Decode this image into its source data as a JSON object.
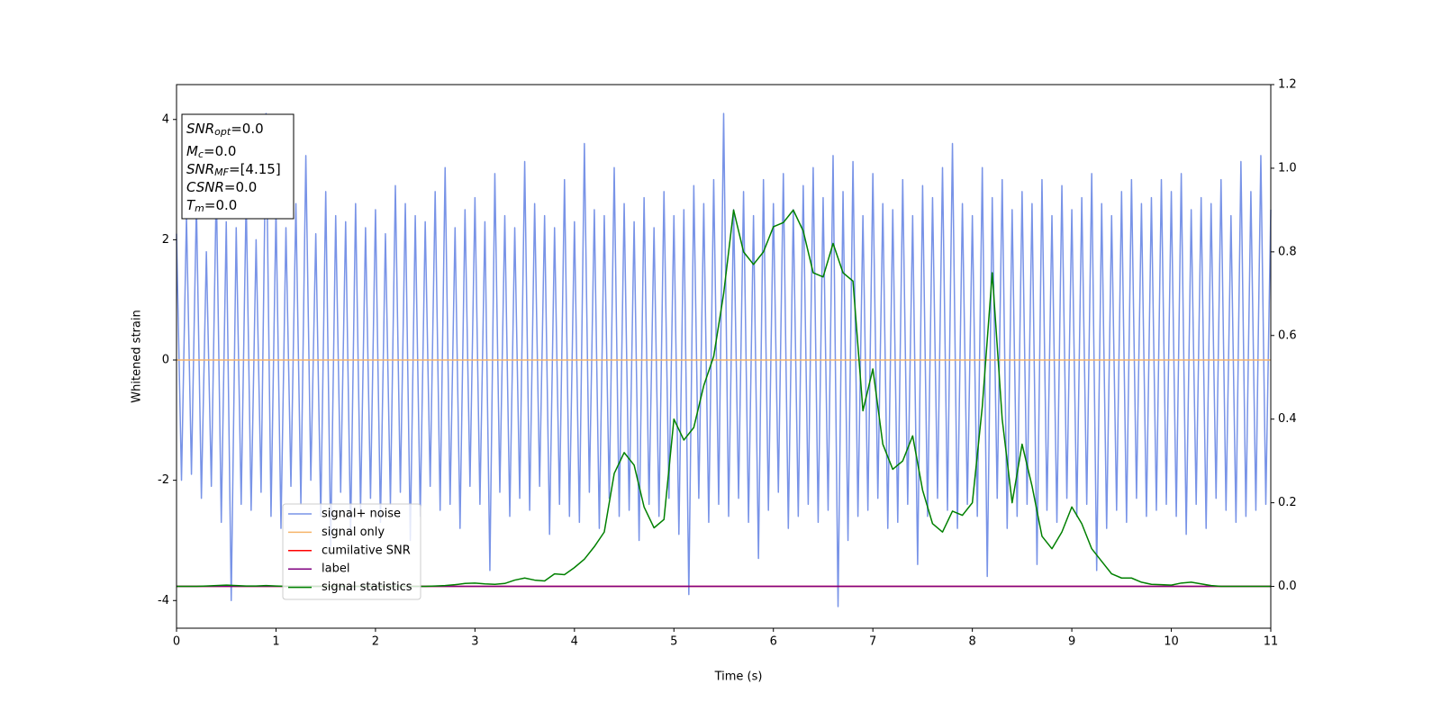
{
  "chart_data": {
    "type": "line",
    "xlabel": "Time (s)",
    "ylabel": "Whitened strain",
    "xlim": [
      0,
      11
    ],
    "xticks": [
      0,
      1,
      2,
      3,
      4,
      5,
      6,
      7,
      8,
      9,
      10,
      11
    ],
    "ylim": [
      -4.46,
      4.58
    ],
    "yticks": [
      -4,
      -2,
      0,
      2,
      4
    ],
    "y2lim": [
      -0.1,
      1.2
    ],
    "y2ticks": [
      {
        "value": 0,
        "label": "0.0"
      },
      {
        "value": 0.2,
        "label": "0.2"
      },
      {
        "value": 0.4,
        "label": "0.4"
      },
      {
        "value": 0.6,
        "label": "0.6"
      },
      {
        "value": 0.8,
        "label": "0.8"
      },
      {
        "value": 1.0,
        "label": "1.0"
      },
      {
        "value": 1.2,
        "label": "1.2"
      }
    ],
    "annotation": [
      [
        "SNR",
        "opt",
        "=0.0"
      ],
      [
        "M",
        "c",
        "=0.0"
      ],
      [
        "SNR",
        "MF",
        "=[4.15]"
      ],
      [
        "CSNR",
        "",
        "=0.0"
      ],
      [
        "T",
        "m",
        "=0.0"
      ]
    ],
    "series": [
      {
        "name": "signal+ noise",
        "color": "#7893e7",
        "x": [
          0,
          0.05,
          0.1,
          0.15,
          0.2,
          0.25,
          0.3,
          0.35,
          0.4,
          0.45,
          0.5,
          0.55,
          0.6,
          0.65,
          0.7,
          0.75,
          0.8,
          0.85,
          0.9,
          0.95,
          1,
          1.05,
          1.1,
          1.15,
          1.2,
          1.25,
          1.3,
          1.35,
          1.4,
          1.45,
          1.5,
          1.55,
          1.6,
          1.65,
          1.7,
          1.75,
          1.8,
          1.85,
          1.9,
          1.95,
          2,
          2.05,
          2.1,
          2.15,
          2.2,
          2.25,
          2.3,
          2.35,
          2.4,
          2.45,
          2.5,
          2.55,
          2.6,
          2.65,
          2.7,
          2.75,
          2.8,
          2.85,
          2.9,
          2.95,
          3,
          3.05,
          3.1,
          3.15,
          3.2,
          3.25,
          3.3,
          3.35,
          3.4,
          3.45,
          3.5,
          3.55,
          3.6,
          3.65,
          3.7,
          3.75,
          3.8,
          3.85,
          3.9,
          3.95,
          4,
          4.05,
          4.1,
          4.15,
          4.2,
          4.25,
          4.3,
          4.35,
          4.4,
          4.45,
          4.5,
          4.55,
          4.6,
          4.65,
          4.7,
          4.75,
          4.8,
          4.85,
          4.9,
          4.95,
          5,
          5.05,
          5.1,
          5.15,
          5.2,
          5.25,
          5.3,
          5.35,
          5.4,
          5.45,
          5.5,
          5.55,
          5.6,
          5.65,
          5.7,
          5.75,
          5.8,
          5.85,
          5.9,
          5.95,
          6,
          6.05,
          6.1,
          6.15,
          6.2,
          6.25,
          6.3,
          6.35,
          6.4,
          6.45,
          6.5,
          6.55,
          6.6,
          6.65,
          6.7,
          6.75,
          6.8,
          6.85,
          6.9,
          6.95,
          7,
          7.05,
          7.1,
          7.15,
          7.2,
          7.25,
          7.3,
          7.35,
          7.4,
          7.45,
          7.5,
          7.55,
          7.6,
          7.65,
          7.7,
          7.75,
          7.8,
          7.85,
          7.9,
          7.95,
          8,
          8.05,
          8.1,
          8.15,
          8.2,
          8.25,
          8.3,
          8.35,
          8.4,
          8.45,
          8.5,
          8.55,
          8.6,
          8.65,
          8.7,
          8.75,
          8.8,
          8.85,
          8.9,
          8.95,
          9,
          9.05,
          9.1,
          9.15,
          9.2,
          9.25,
          9.3,
          9.35,
          9.4,
          9.45,
          9.5,
          9.55,
          9.6,
          9.65,
          9.7,
          9.75,
          9.8,
          9.85,
          9.9,
          9.95,
          10,
          10.05,
          10.1,
          10.15,
          10.2,
          10.25,
          10.3,
          10.35,
          10.4,
          10.45,
          10.5,
          10.55,
          10.6,
          10.65,
          10.7,
          10.75,
          10.8,
          10.85,
          10.9,
          10.95,
          11
        ],
        "values": [
          2.1,
          -2.0,
          2.4,
          -1.9,
          2.6,
          -2.3,
          1.8,
          -2.1,
          2.9,
          -2.7,
          2.3,
          -4.0,
          2.2,
          -2.4,
          2.7,
          -2.5,
          2.0,
          -2.2,
          4.1,
          -2.6,
          2.5,
          -2.8,
          2.2,
          -2.1,
          2.6,
          -2.4,
          3.4,
          -2.0,
          2.1,
          -2.6,
          2.8,
          -3.1,
          2.4,
          -2.2,
          2.3,
          -2.9,
          2.6,
          -2.5,
          2.2,
          -2.3,
          2.5,
          -2.7,
          2.1,
          -2.4,
          2.9,
          -2.2,
          2.6,
          -3.0,
          2.4,
          -2.6,
          2.3,
          -2.1,
          2.8,
          -2.5,
          3.2,
          -2.4,
          2.2,
          -2.8,
          2.5,
          -2.1,
          2.7,
          -2.4,
          2.3,
          -3.5,
          3.1,
          -2.2,
          2.4,
          -2.6,
          2.2,
          -2.3,
          3.3,
          -2.5,
          2.6,
          -2.1,
          2.4,
          -2.9,
          2.2,
          -2.4,
          3.0,
          -2.6,
          2.3,
          -2.7,
          3.6,
          -2.2,
          2.5,
          -2.8,
          2.4,
          -2.3,
          3.2,
          -2.6,
          2.6,
          -2.5,
          2.3,
          -3.0,
          2.7,
          -2.4,
          2.2,
          -2.6,
          2.8,
          -2.3,
          2.4,
          -2.9,
          2.5,
          -3.9,
          2.9,
          -2.3,
          2.6,
          -2.7,
          3.0,
          -2.4,
          4.1,
          -2.6,
          2.5,
          -2.3,
          2.8,
          -2.7,
          2.4,
          -3.3,
          3.0,
          -2.5,
          2.6,
          -2.2,
          3.1,
          -2.8,
          2.5,
          -2.6,
          2.9,
          -2.4,
          3.2,
          -2.7,
          2.7,
          -2.5,
          3.4,
          -4.1,
          2.8,
          -3.0,
          3.3,
          -2.6,
          2.4,
          -2.5,
          3.1,
          -2.3,
          2.6,
          -2.8,
          2.5,
          -2.7,
          3.0,
          -2.4,
          2.4,
          -3.4,
          2.9,
          -2.6,
          2.7,
          -2.3,
          3.2,
          -2.5,
          3.6,
          -2.8,
          2.6,
          -2.4,
          2.4,
          -2.6,
          3.2,
          -3.6,
          2.7,
          -2.3,
          3.0,
          -2.8,
          2.5,
          -2.6,
          2.8,
          -2.4,
          2.6,
          -3.4,
          3.0,
          -2.5,
          2.4,
          -2.7,
          2.9,
          -2.3,
          2.5,
          -2.6,
          2.7,
          -2.4,
          3.1,
          -3.5,
          2.6,
          -2.8,
          2.4,
          -2.5,
          2.8,
          -2.7,
          3.0,
          -2.3,
          2.6,
          -2.6,
          2.7,
          -2.5,
          3.0,
          -2.4,
          2.8,
          -2.6,
          3.1,
          -2.9,
          2.5,
          -2.4,
          2.7,
          -2.8,
          2.6,
          -2.3,
          3.0,
          -2.5,
          2.4,
          -2.7,
          3.3,
          -2.6,
          2.8,
          -2.5,
          3.4,
          -2.4,
          2.5
        ]
      },
      {
        "name": "signal only",
        "color": "#f6b46a",
        "x": [
          0,
          11
        ],
        "values": [
          0,
          0
        ]
      },
      {
        "name": "cumilative SNR",
        "color": "#ff0000",
        "axis": "y2",
        "x": [
          0,
          11
        ],
        "values": [
          0,
          0
        ]
      },
      {
        "name": "label",
        "color": "#800080",
        "axis": "y2",
        "x": [
          0,
          11
        ],
        "values": [
          0,
          0
        ]
      },
      {
        "name": "signal statistics",
        "color": "#008000",
        "axis": "y2",
        "x": [
          0,
          0.1,
          0.2,
          0.3,
          0.4,
          0.5,
          0.6,
          0.7,
          0.8,
          0.9,
          1,
          1.1,
          1.2,
          1.3,
          1.4,
          1.5,
          1.6,
          1.7,
          1.8,
          1.9,
          2,
          2.1,
          2.2,
          2.3,
          2.4,
          2.5,
          2.6,
          2.7,
          2.8,
          2.9,
          3,
          3.1,
          3.2,
          3.3,
          3.4,
          3.5,
          3.6,
          3.7,
          3.8,
          3.9,
          4,
          4.1,
          4.2,
          4.3,
          4.4,
          4.5,
          4.6,
          4.7,
          4.8,
          4.9,
          5,
          5.1,
          5.2,
          5.3,
          5.4,
          5.5,
          5.6,
          5.7,
          5.8,
          5.9,
          6,
          6.1,
          6.2,
          6.3,
          6.4,
          6.5,
          6.6,
          6.7,
          6.8,
          6.9,
          7,
          7.1,
          7.2,
          7.3,
          7.4,
          7.5,
          7.6,
          7.7,
          7.8,
          7.9,
          8,
          8.1,
          8.2,
          8.3,
          8.4,
          8.5,
          8.6,
          8.7,
          8.8,
          8.9,
          9,
          9.1,
          9.2,
          9.3,
          9.4,
          9.5,
          9.6,
          9.7,
          9.8,
          9.9,
          10,
          10.1,
          10.2,
          10.3,
          10.4,
          10.5,
          10.6,
          10.7,
          10.8,
          10.9,
          11
        ],
        "values": [
          0,
          0,
          0,
          0.001,
          0.002,
          0.003,
          0.002,
          0.001,
          0.001,
          0.002,
          0.001,
          0,
          0,
          0,
          0,
          0,
          0,
          0,
          0,
          0,
          0,
          0,
          0,
          0,
          0,
          0,
          0.001,
          0.002,
          0.004,
          0.007,
          0.008,
          0.006,
          0.005,
          0.007,
          0.015,
          0.02,
          0.015,
          0.013,
          0.03,
          0.028,
          0.045,
          0.065,
          0.095,
          0.13,
          0.27,
          0.32,
          0.29,
          0.19,
          0.14,
          0.16,
          0.4,
          0.35,
          0.38,
          0.48,
          0.55,
          0.7,
          0.9,
          0.8,
          0.77,
          0.8,
          0.86,
          0.87,
          0.9,
          0.85,
          0.75,
          0.74,
          0.82,
          0.75,
          0.73,
          0.42,
          0.52,
          0.34,
          0.28,
          0.3,
          0.36,
          0.23,
          0.15,
          0.13,
          0.18,
          0.17,
          0.2,
          0.43,
          0.75,
          0.4,
          0.2,
          0.34,
          0.24,
          0.12,
          0.09,
          0.13,
          0.19,
          0.15,
          0.09,
          0.06,
          0.03,
          0.02,
          0.02,
          0.01,
          0.005,
          0.004,
          0.003,
          0.008,
          0.01,
          0.006,
          0.002,
          0,
          0,
          0,
          0,
          0,
          0
        ]
      }
    ]
  }
}
